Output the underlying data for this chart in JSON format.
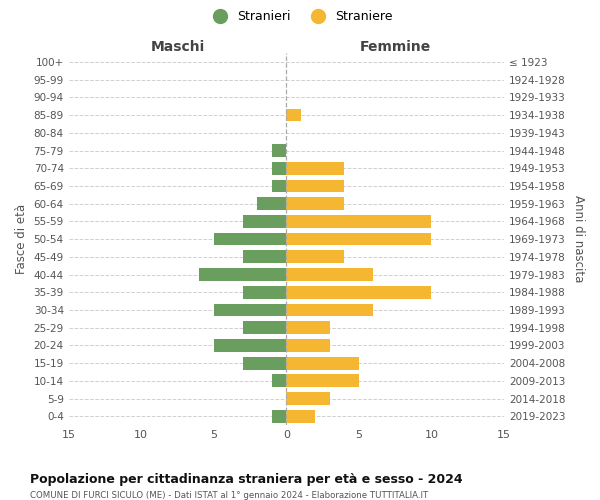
{
  "age_groups": [
    "100+",
    "95-99",
    "90-94",
    "85-89",
    "80-84",
    "75-79",
    "70-74",
    "65-69",
    "60-64",
    "55-59",
    "50-54",
    "45-49",
    "40-44",
    "35-39",
    "30-34",
    "25-29",
    "20-24",
    "15-19",
    "10-14",
    "5-9",
    "0-4"
  ],
  "birth_years": [
    "≤ 1923",
    "1924-1928",
    "1929-1933",
    "1934-1938",
    "1939-1943",
    "1944-1948",
    "1949-1953",
    "1954-1958",
    "1959-1963",
    "1964-1968",
    "1969-1973",
    "1974-1978",
    "1979-1983",
    "1984-1988",
    "1989-1993",
    "1994-1998",
    "1999-2003",
    "2004-2008",
    "2009-2013",
    "2014-2018",
    "2019-2023"
  ],
  "males": [
    0,
    0,
    0,
    0,
    0,
    1,
    1,
    1,
    2,
    3,
    5,
    3,
    6,
    3,
    5,
    3,
    5,
    3,
    1,
    0,
    1
  ],
  "females": [
    0,
    0,
    0,
    1,
    0,
    0,
    4,
    4,
    4,
    10,
    10,
    4,
    6,
    10,
    6,
    3,
    3,
    5,
    5,
    3,
    2
  ],
  "male_color": "#6a9e5e",
  "female_color": "#f5b731",
  "male_label": "Stranieri",
  "female_label": "Straniere",
  "title": "Popolazione per cittadinanza straniera per età e sesso - 2024",
  "subtitle": "COMUNE DI FURCI SICULO (ME) - Dati ISTAT al 1° gennaio 2024 - Elaborazione TUTTITALIA.IT",
  "xlabel_left": "Maschi",
  "xlabel_right": "Femmine",
  "ylabel_left": "Fasce di età",
  "ylabel_right": "Anni di nascita",
  "xlim": 15,
  "bg_color": "#ffffff",
  "grid_color": "#d0d0d0"
}
